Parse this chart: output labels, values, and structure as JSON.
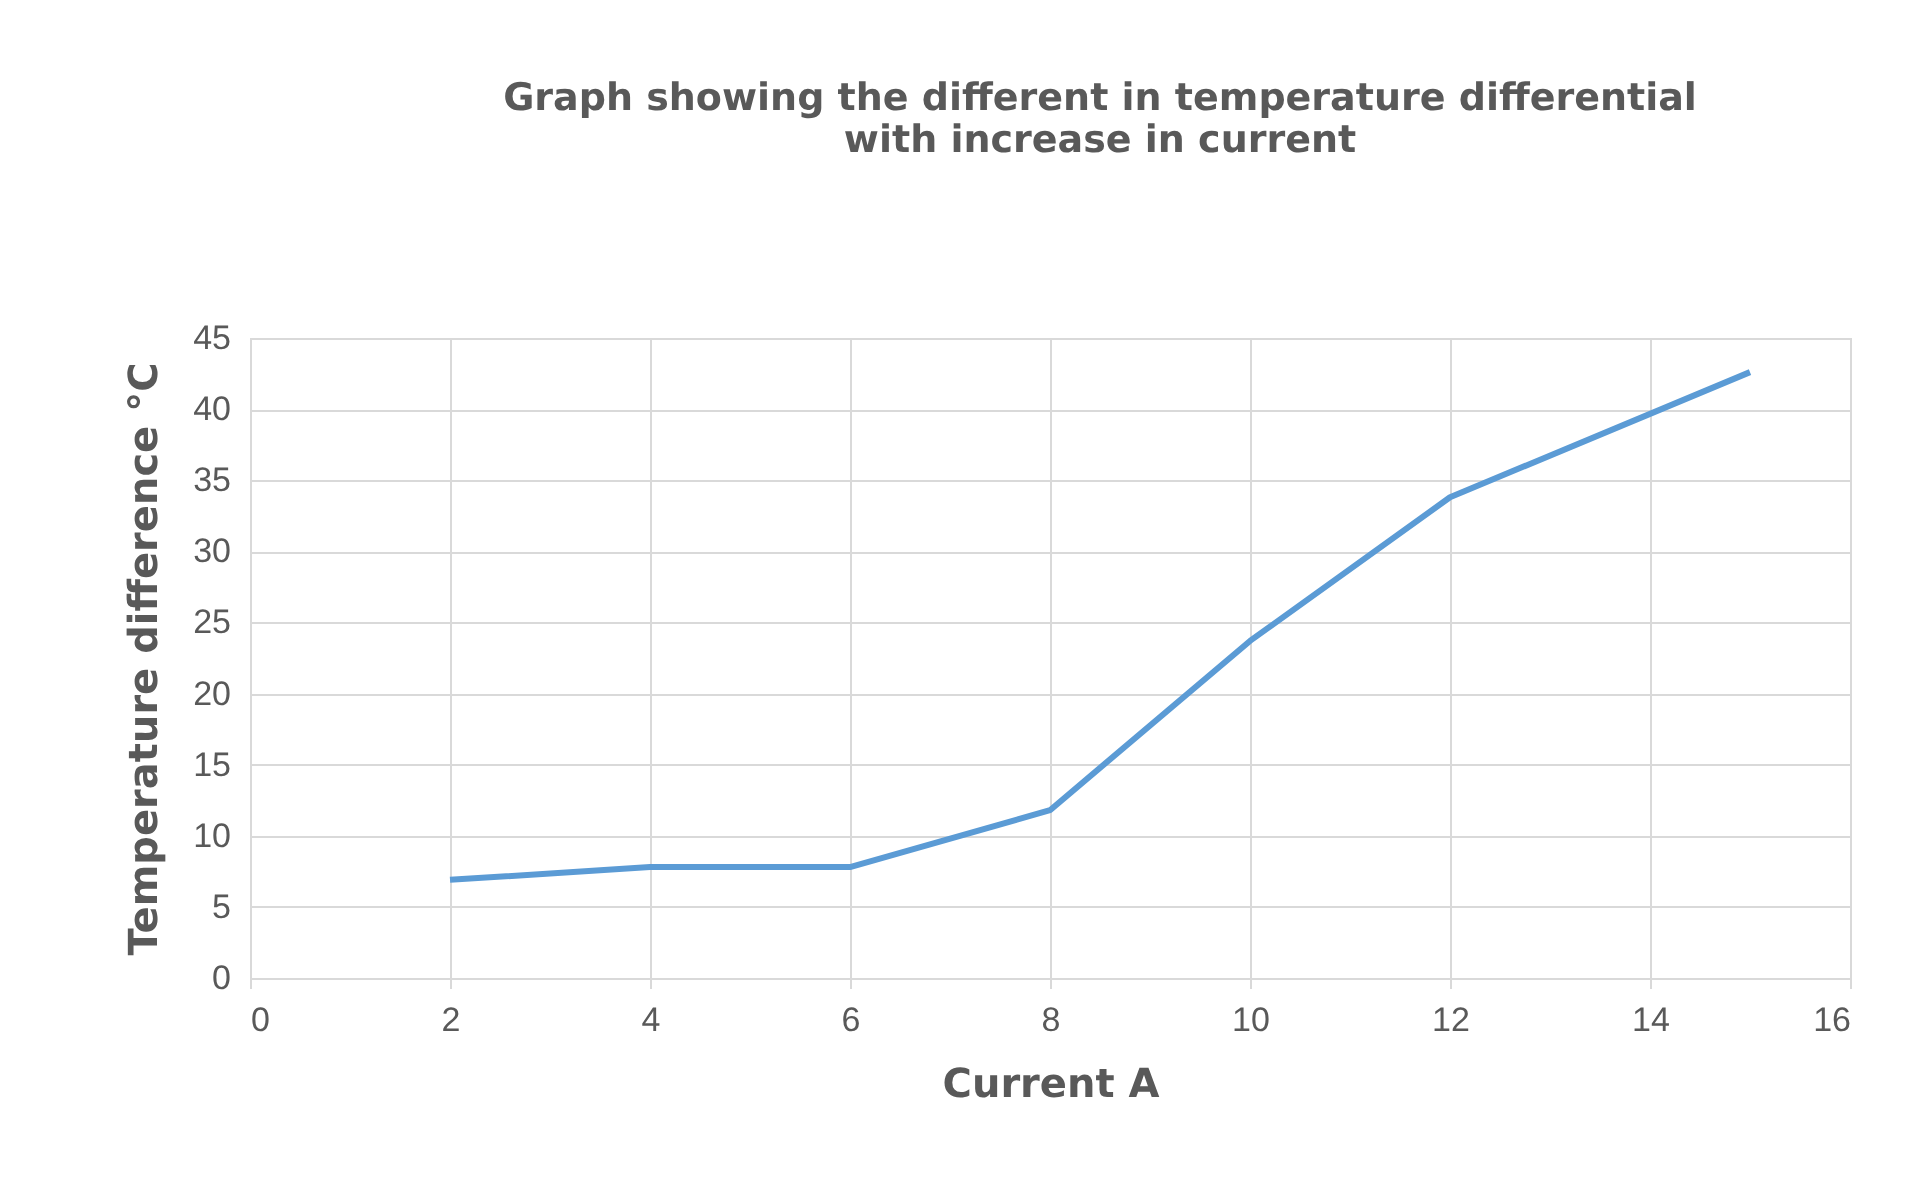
{
  "chart_data": {
    "type": "line",
    "title": [
      "Graph showing the different in temperature differential",
      "with increase in current"
    ],
    "xlabel": "Current A",
    "ylabel": "Temperature difference °C",
    "x": [
      2,
      4,
      6,
      8,
      10,
      12,
      15
    ],
    "series": [
      {
        "color": "#5b9bd5",
        "values": [
          6.9,
          7.8,
          7.8,
          11.8,
          23.7,
          33.8,
          42.6
        ]
      }
    ],
    "xlim": [
      0,
      16
    ],
    "xticks": [
      0,
      2,
      4,
      6,
      8,
      10,
      12,
      14,
      16
    ],
    "ylim": [
      0,
      45
    ],
    "yticks": [
      0,
      5,
      10,
      15,
      20,
      25,
      30,
      35,
      40,
      45
    ],
    "grid": true,
    "legend": false,
    "marker": "none",
    "line_style": "solid"
  }
}
